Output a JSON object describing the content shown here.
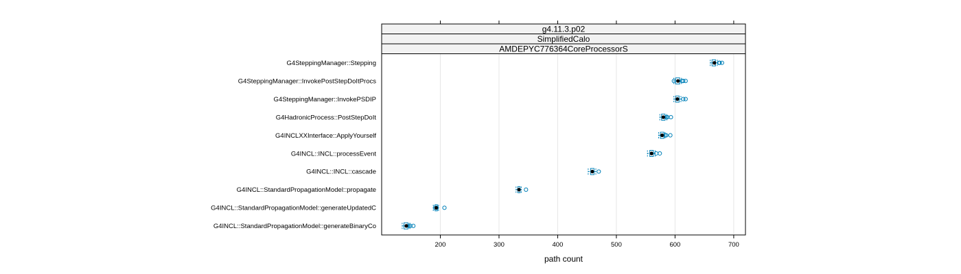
{
  "chart_data": {
    "type": "boxplot",
    "strips": [
      "g4.11.3.p02",
      "SimplifiedCalo",
      "AMDEPYC776364CoreProcessorS"
    ],
    "xlabel": "path count",
    "xlim": [
      100,
      720
    ],
    "xticks": [
      200,
      300,
      400,
      500,
      600,
      700
    ],
    "grid": "vertical",
    "colors": {
      "box": "#0080b8",
      "median": "#000000",
      "outlier": "#0080b8",
      "grid": "#e6e6e6",
      "strip_bg": "#f2f2f2"
    },
    "categories": [
      "G4SteppingManager::Stepping",
      "G4SteppingManager::InvokePostStepDoItProcs",
      "G4SteppingManager::InvokePSDIP",
      "G4HadronicProcess::PostStepDoIt",
      "G4INCLXXInterface::ApplyYourself",
      "G4INCL::INCL::processEvent",
      "G4INCL::INCL::cascade",
      "G4INCL::StandardPropagationModel::propagate",
      "G4INCL::StandardPropagationModel::generateUpdatedC",
      "G4INCL::StandardPropagationModel::generateBinaryCo"
    ],
    "boxes": [
      {
        "wlo": 660,
        "q1": 663,
        "median": 667,
        "q3": 669,
        "whi": 672,
        "outliers": [
          675,
          676,
          680
        ]
      },
      {
        "wlo": 598,
        "q1": 601,
        "median": 605,
        "q3": 608,
        "whi": 611,
        "outliers": [
          598,
          612,
          614,
          618
        ]
      },
      {
        "wlo": 598,
        "q1": 601,
        "median": 604,
        "q3": 607,
        "whi": 610,
        "outliers": [
          614,
          618
        ]
      },
      {
        "wlo": 574,
        "q1": 577,
        "median": 580,
        "q3": 583,
        "whi": 586,
        "outliers": [
          585,
          587,
          593
        ]
      },
      {
        "wlo": 572,
        "q1": 575,
        "median": 578,
        "q3": 581,
        "whi": 583,
        "outliers": [
          583,
          585,
          592
        ]
      },
      {
        "wlo": 553,
        "q1": 557,
        "median": 560,
        "q3": 563,
        "whi": 566,
        "outliers": [
          568,
          574
        ]
      },
      {
        "wlo": 452,
        "q1": 456,
        "median": 459,
        "q3": 462,
        "whi": 465,
        "outliers": [
          470
        ]
      },
      {
        "wlo": 329,
        "q1": 332,
        "median": 334,
        "q3": 336,
        "whi": 338,
        "outliers": [
          346
        ]
      },
      {
        "wlo": 188,
        "q1": 191,
        "median": 193,
        "q3": 195,
        "whi": 197,
        "outliers": [
          191,
          194,
          207
        ]
      },
      {
        "wlo": 135,
        "q1": 138,
        "median": 142,
        "q3": 145,
        "whi": 148,
        "outliers": [
          146,
          149,
          154
        ]
      }
    ]
  }
}
